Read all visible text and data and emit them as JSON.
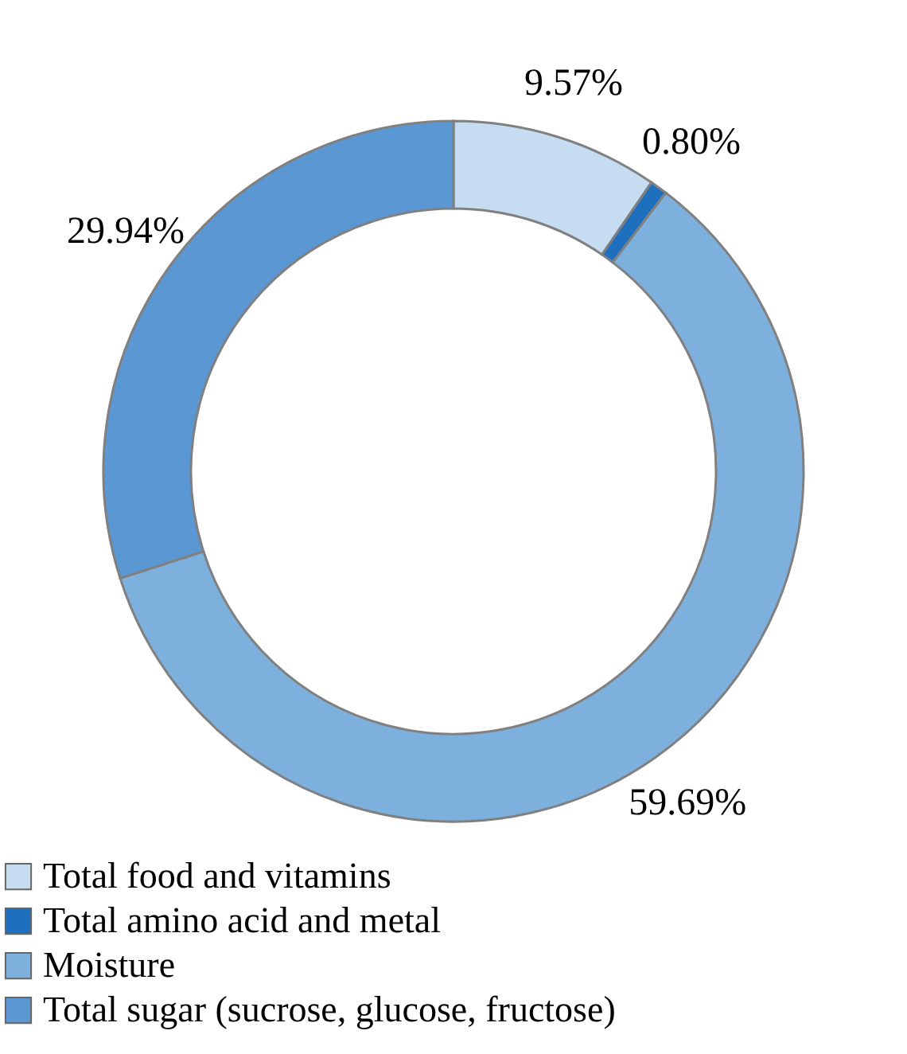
{
  "chart_data": {
    "type": "donut",
    "categories": [
      "Total food and vitamins",
      "Total amino acid and metal",
      "Moisture",
      "Total sugar (sucrose, glucose, fructose)"
    ],
    "values": [
      9.57,
      0.8,
      59.69,
      29.94
    ],
    "value_labels": [
      "9.57%",
      "0.80%",
      "59.69%",
      "29.94%"
    ],
    "colors": [
      "#c5dcf1",
      "#1f6fbf",
      "#7eb0de",
      "#5a97d3"
    ],
    "legend": "bottom"
  }
}
